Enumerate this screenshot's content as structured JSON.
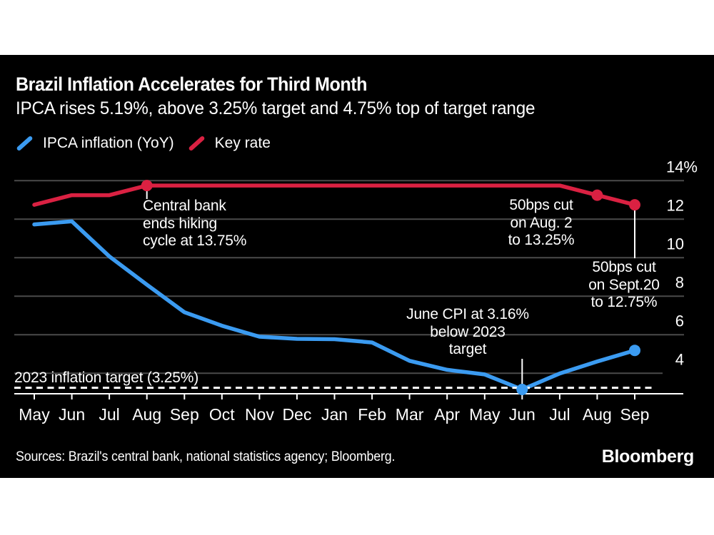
{
  "header": {
    "title": "Brazil Inflation Accelerates for Third Month",
    "subtitle": "IPCA rises 5.19%, above 3.25% target and 4.75% top of target range"
  },
  "legend": [
    {
      "label": "IPCA inflation (YoY)",
      "color": "#3b9bf1"
    },
    {
      "label": "Key rate",
      "color": "#da2142"
    }
  ],
  "chart_data": {
    "type": "line",
    "x": [
      "May",
      "Jun",
      "Jul",
      "Aug",
      "Sep",
      "Oct",
      "Nov",
      "Dec",
      "Jan",
      "Feb",
      "Mar",
      "Apr",
      "May",
      "Jun",
      "Jul",
      "Aug",
      "Sep"
    ],
    "series": [
      {
        "name": "IPCA inflation (YoY)",
        "color": "#3b9bf1",
        "values": [
          11.73,
          11.89,
          10.07,
          8.6,
          7.17,
          6.47,
          5.9,
          5.79,
          5.77,
          5.6,
          4.65,
          4.18,
          3.94,
          3.16,
          3.99,
          4.61,
          5.19
        ],
        "markers": [
          13,
          16
        ]
      },
      {
        "name": "Key rate",
        "color": "#da2142",
        "values": [
          12.75,
          13.25,
          13.25,
          13.75,
          13.75,
          13.75,
          13.75,
          13.75,
          13.75,
          13.75,
          13.75,
          13.75,
          13.75,
          13.75,
          13.75,
          13.25,
          12.75
        ],
        "markers": [
          3,
          15,
          16
        ]
      }
    ],
    "ylim": [
      2.9,
      14.9
    ],
    "yticks": {
      "values": [
        14,
        12,
        10,
        8,
        6,
        4
      ],
      "labels": [
        "14%",
        "12",
        "10",
        "8",
        "6",
        "4"
      ]
    },
    "target_line": {
      "value": 3.25,
      "label": "2023 inflation target (3.25%)",
      "style": "dashed"
    },
    "grid": true,
    "legend_position": "top-left",
    "title": "Brazil Inflation Accelerates for Third Month",
    "xlabel": "",
    "ylabel": ""
  },
  "annotations": [
    {
      "id": "hike-end",
      "lines": [
        "Central bank",
        "ends hiking",
        "cycle at 13.75%"
      ]
    },
    {
      "id": "aug-cut",
      "lines": [
        "50bps cut",
        "on Aug. 2",
        "to 13.25%"
      ]
    },
    {
      "id": "sept-cut",
      "lines": [
        "50bps cut",
        "on Sept.20",
        "to 12.75%"
      ]
    },
    {
      "id": "june-cpi",
      "lines": [
        "June CPI at 3.16%",
        "below 2023",
        "target"
      ]
    }
  ],
  "footer": {
    "sources": "Sources: Brazil's central bank, national statistics agency; Bloomberg.",
    "logo": "Bloomberg"
  },
  "colors": {
    "background": "#000000",
    "page": "#ffffff",
    "grid": "#4a4a4a",
    "text": "#ffffff",
    "ipca_blue": "#3b9bf1",
    "key_rate_red": "#da2142"
  }
}
